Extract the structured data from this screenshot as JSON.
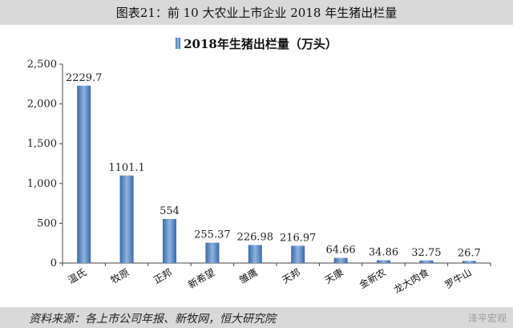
{
  "caption": "图表21：前 10 大农业上市企业 2018 年生猪出栏量",
  "chart_data": {
    "type": "bar",
    "title": "2018年生猪出栏量（万头）",
    "categories": [
      "温氏",
      "牧原",
      "正邦",
      "新希望",
      "雏鹰",
      "天邦",
      "天康",
      "金新农",
      "龙大肉食",
      "罗牛山"
    ],
    "series": [
      {
        "name": "2018年生猪出栏量（万头）",
        "values": [
          2229.7,
          1101.1,
          554,
          255.37,
          226.98,
          216.97,
          64.66,
          34.86,
          32.75,
          26.7
        ],
        "labels": [
          "2229.7",
          "1101.1",
          "554",
          "255.37",
          "226.98",
          "216.97",
          "64.66",
          "34.86",
          "32.75",
          "26.7"
        ]
      }
    ],
    "ylim": [
      0,
      2500
    ],
    "yticks": [
      0,
      500,
      1000,
      1500,
      2000,
      2500
    ],
    "ytick_labels": [
      "0",
      "500",
      "1,000",
      "1,500",
      "2,000",
      "2,500"
    ],
    "grid": false,
    "legend": "top-center",
    "bar_color": "#4a7ebb"
  },
  "footer": {
    "source": "资料来源：各上市公司年报、新牧网，恒大研究院",
    "watermark": "泽平宏观"
  }
}
